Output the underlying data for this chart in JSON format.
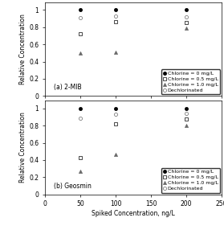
{
  "x_values": [
    50,
    100,
    200
  ],
  "mib": {
    "chlorine_0": [
      1.0,
      1.0,
      1.0
    ],
    "chlorine_0_5": [
      0.72,
      0.86,
      0.85
    ],
    "chlorine_1_0": [
      0.5,
      0.51,
      0.79
    ],
    "dechlorinated": [
      0.91,
      0.93,
      0.92
    ]
  },
  "geosmin": {
    "chlorine_0": [
      1.0,
      1.0,
      1.0
    ],
    "chlorine_0_5": [
      0.43,
      0.82,
      0.88
    ],
    "chlorine_1_0": [
      0.27,
      0.46,
      0.8
    ],
    "dechlorinated": [
      0.89,
      0.93,
      0.94
    ]
  },
  "legend_labels": [
    "Chlorine = 0 mg/L",
    "Chlorine = 0.5 mg/L",
    "Chlorine = 1.0 mg/L",
    "Dechlorinated"
  ],
  "xlabel": "Spiked Concentration, ng/L",
  "ylabel": "Relative Concentration",
  "panel_a_label": "(a) 2-MIB",
  "panel_b_label": "(b) Geosmin",
  "xlim": [
    0,
    250
  ],
  "ylim": [
    0,
    1.09
  ],
  "xticks": [
    0,
    50,
    100,
    150,
    200,
    250
  ],
  "yticks": [
    0,
    0.2,
    0.4,
    0.6,
    0.8,
    1.0
  ]
}
